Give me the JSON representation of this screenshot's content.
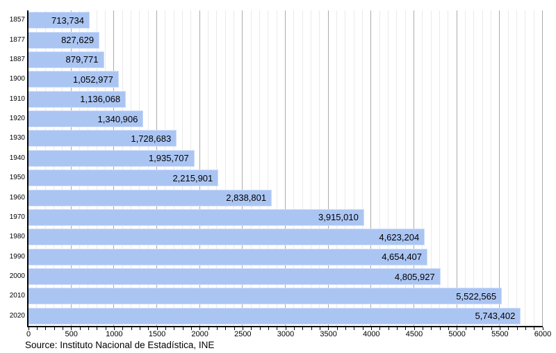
{
  "chart_data": {
    "type": "bar",
    "orientation": "horizontal",
    "title": "",
    "xlabel": "",
    "ylabel": "",
    "grid": true,
    "legend": false,
    "categories": [
      "1857",
      "1877",
      "1887",
      "1900",
      "1910",
      "1920",
      "1930",
      "1940",
      "1950",
      "1960",
      "1970",
      "1980",
      "1990",
      "2000",
      "2010",
      "2020"
    ],
    "values": [
      713734,
      827629,
      879771,
      1052977,
      1136068,
      1340906,
      1728683,
      1935707,
      2215901,
      2838801,
      3915010,
      4623204,
      4654407,
      4805927,
      5522565,
      5743402
    ],
    "value_labels": [
      "713,734",
      "827,629",
      "879,771",
      "1,052,977",
      "1,136,068",
      "1,340,906",
      "1,728,683",
      "1,935,707",
      "2,215,901",
      "2,838,801",
      "3,915,010",
      "4,623,204",
      "4,654,407",
      "4,805,927",
      "5,522,565",
      "5,743,402"
    ],
    "x_axis": {
      "min": 0,
      "max": 6000,
      "unit_divisor": 1000,
      "minor_step": 100,
      "major_step": 500,
      "tick_labels": [
        "0",
        "500",
        "1000",
        "1500",
        "2000",
        "2500",
        "3000",
        "3500",
        "4000",
        "4500",
        "5000",
        "5500",
        "6000"
      ]
    }
  },
  "source": {
    "label": "Source: Instituto Nacional de Estadística, INE"
  },
  "colors": {
    "background": "#ffffff",
    "bar_fill": "#abc5f3",
    "bar_border": "#cddcf9",
    "grid_minor": "#eaeaea",
    "grid_major": "#ababab",
    "axis": "#000000",
    "text": "#000000"
  }
}
